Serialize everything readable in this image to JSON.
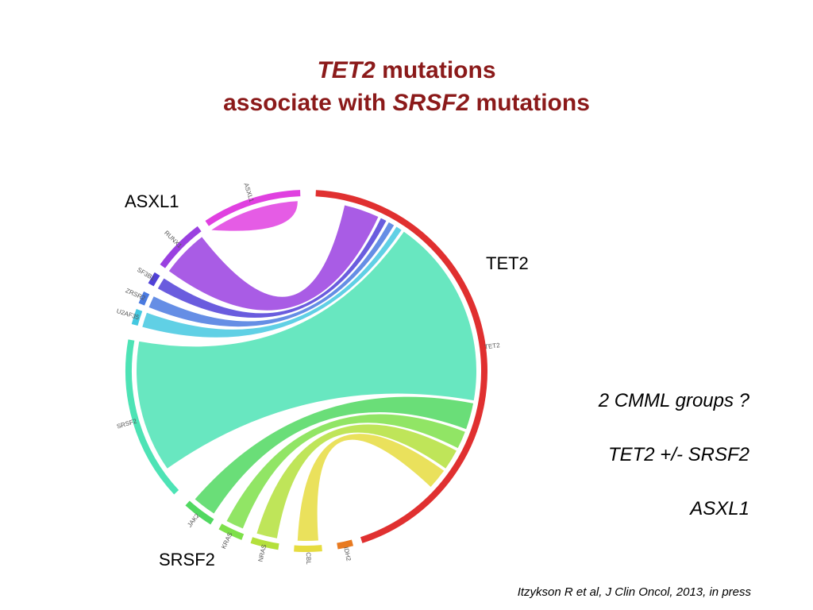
{
  "title": {
    "line1_gene": "TET2",
    "line1_rest": " mutations",
    "line2_start": "associate with ",
    "line2_gene": "SRSF2",
    "line2_rest": " mutations"
  },
  "callouts": {
    "asxl1": "ASXL1",
    "tet2": "TET2",
    "srsf2": "SRSF2"
  },
  "notes": {
    "groups": "2 CMML groups ?",
    "tet2_srsf2": "TET2 +/- SRSF2",
    "asxl1": "ASXL1"
  },
  "citation": "Itzykson R et al, J Clin Oncol, 2013, in press",
  "genes": [
    {
      "name": "TET2",
      "color": "#e03030"
    },
    {
      "name": "IDH2",
      "color": "#e87a20"
    },
    {
      "name": "CBL",
      "color": "#e6dc40"
    },
    {
      "name": "NRAS",
      "color": "#b4e03c"
    },
    {
      "name": "KRAS",
      "color": "#7ee04a"
    },
    {
      "name": "JAK2",
      "color": "#50d860"
    },
    {
      "name": "SRSF2",
      "color": "#4de3b5"
    },
    {
      "name": "U2AF35",
      "color": "#44c8e0"
    },
    {
      "name": "ZRSR2",
      "color": "#4a7ae0"
    },
    {
      "name": "SF3B1",
      "color": "#5040d8"
    },
    {
      "name": "RUNX1",
      "color": "#9a40e0"
    },
    {
      "name": "ASXL1",
      "color": "#e040e0"
    }
  ]
}
